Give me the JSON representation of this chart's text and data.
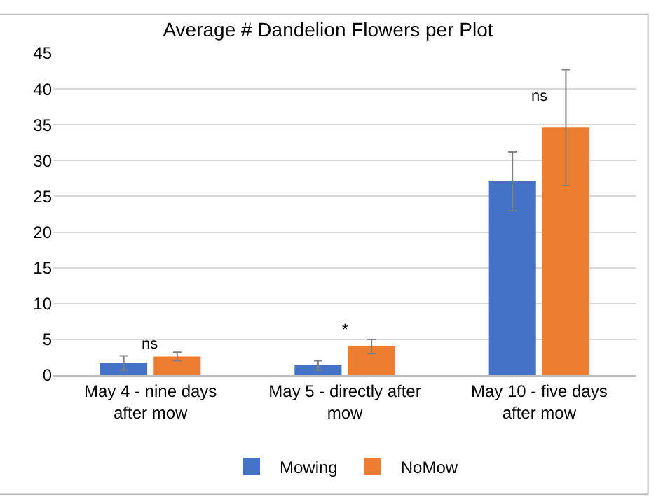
{
  "chart_data": {
    "type": "bar",
    "title": "Average # Dandelion Flowers per Plot",
    "categories": [
      "May 4 - nine days after mow",
      "May 5 - directly after mow",
      "May 10 - five days after mow"
    ],
    "series": [
      {
        "name": "Mowing",
        "color": "#4472c4",
        "values": [
          1.7,
          1.4,
          27.2
        ],
        "errors": [
          [
            0.7,
            2.7
          ],
          [
            0.7,
            2.0
          ],
          [
            23.0,
            31.2
          ]
        ]
      },
      {
        "name": "NoMow",
        "color": "#ed7d31",
        "values": [
          2.6,
          4.0,
          34.6
        ],
        "errors": [
          [
            2.0,
            3.2
          ],
          [
            3.0,
            5.0
          ],
          [
            26.5,
            42.7
          ]
        ]
      }
    ],
    "annotations": [
      "ns",
      "*",
      "ns"
    ],
    "ylim": [
      0,
      45
    ],
    "yticks": [
      0,
      5,
      10,
      15,
      20,
      25,
      30,
      35,
      40,
      45
    ],
    "grid": "y",
    "legend": "bottom"
  }
}
